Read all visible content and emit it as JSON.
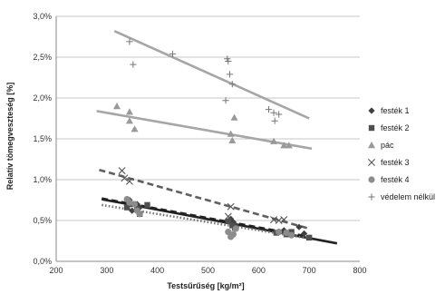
{
  "chart_data": {
    "type": "scatter",
    "title": "",
    "xlabel": "Testsűrűség [kg/m²]",
    "ylabel": "Relatív tömegveszteség [%]",
    "xlim": [
      200,
      800
    ],
    "ylim": [
      0,
      3.0
    ],
    "xticks": [
      200,
      300,
      400,
      500,
      600,
      700,
      800
    ],
    "xtick_labels": [
      "200",
      "300",
      "400",
      "500",
      "600",
      "700",
      "800"
    ],
    "yticks": [
      0,
      0.5,
      1.0,
      1.5,
      2.0,
      2.5,
      3.0
    ],
    "ytick_labels": [
      "0,0%",
      "0,5%",
      "1,0%",
      "1,5%",
      "2,0%",
      "2,5%",
      "3,0%"
    ],
    "grid": "horizontal",
    "legend_position": "right",
    "series": [
      {
        "name": "festék 1",
        "marker": "diamond",
        "color": "#404040",
        "points": [
          [
            340,
            0.68
          ],
          [
            345,
            0.75
          ],
          [
            350,
            0.62
          ],
          [
            360,
            0.7
          ],
          [
            365,
            0.66
          ],
          [
            545,
            0.52
          ],
          [
            550,
            0.48
          ],
          [
            555,
            0.44
          ],
          [
            640,
            0.36
          ],
          [
            650,
            0.38
          ],
          [
            680,
            0.42
          ],
          [
            690,
            0.34
          ]
        ],
        "trend": {
          "x": [
            290,
            700
          ],
          "y": [
            0.77,
            0.3
          ],
          "style": "dash",
          "color": "#222222"
        }
      },
      {
        "name": "festék 2",
        "marker": "square",
        "color": "#505050",
        "points": [
          [
            340,
            0.66
          ],
          [
            350,
            0.7
          ],
          [
            360,
            0.64
          ],
          [
            365,
            0.58
          ],
          [
            380,
            0.69
          ],
          [
            540,
            0.49
          ],
          [
            548,
            0.44
          ],
          [
            553,
            0.41
          ],
          [
            635,
            0.35
          ],
          [
            655,
            0.33
          ],
          [
            665,
            0.36
          ],
          [
            700,
            0.29
          ]
        ],
        "trend": {
          "x": [
            290,
            755
          ],
          "y": [
            0.76,
            0.22
          ],
          "style": "solid",
          "color": "#222222"
        }
      },
      {
        "name": "pác",
        "marker": "triangle",
        "color": "#999999",
        "points": [
          [
            320,
            1.9
          ],
          [
            345,
            1.83
          ],
          [
            345,
            1.72
          ],
          [
            355,
            1.62
          ],
          [
            545,
            1.56
          ],
          [
            548,
            1.48
          ],
          [
            552,
            1.76
          ],
          [
            630,
            1.47
          ],
          [
            650,
            1.42
          ],
          [
            660,
            1.42
          ]
        ],
        "trend": {
          "x": [
            280,
            705
          ],
          "y": [
            1.84,
            1.38
          ],
          "style": "solid",
          "color": "#a6a6a6"
        }
      },
      {
        "name": "festék 3",
        "marker": "x",
        "color": "#555555",
        "points": [
          [
            330,
            1.11
          ],
          [
            335,
            1.02
          ],
          [
            345,
            0.98
          ],
          [
            540,
            0.55
          ],
          [
            545,
            0.67
          ],
          [
            630,
            0.51
          ],
          [
            640,
            0.5
          ],
          [
            650,
            0.51
          ]
        ],
        "trend": {
          "x": [
            285,
            700
          ],
          "y": [
            1.12,
            0.4
          ],
          "style": "dash",
          "color": "#606060"
        }
      },
      {
        "name": "festék 4",
        "marker": "circle",
        "color": "#8c8c8c",
        "points": [
          [
            340,
            0.76
          ],
          [
            345,
            0.72
          ],
          [
            355,
            0.7
          ],
          [
            360,
            0.62
          ],
          [
            365,
            0.58
          ],
          [
            540,
            0.36
          ],
          [
            545,
            0.3
          ],
          [
            550,
            0.33
          ],
          [
            555,
            0.4
          ],
          [
            640,
            0.36
          ],
          [
            655,
            0.35
          ],
          [
            665,
            0.32
          ]
        ],
        "trend": {
          "x": [
            290,
            700
          ],
          "y": [
            0.69,
            0.28
          ],
          "style": "dot",
          "color": "#777777"
        }
      },
      {
        "name": "védelem nélkül",
        "marker": "plus",
        "color": "#777777",
        "points": [
          [
            345,
            2.69
          ],
          [
            352,
            2.41
          ],
          [
            430,
            2.54
          ],
          [
            535,
            1.97
          ],
          [
            538,
            2.48
          ],
          [
            540,
            2.45
          ],
          [
            543,
            2.29
          ],
          [
            548,
            2.17
          ],
          [
            620,
            1.86
          ],
          [
            630,
            1.82
          ],
          [
            632,
            1.72
          ],
          [
            640,
            1.8
          ]
        ],
        "trend": {
          "x": [
            315,
            700
          ],
          "y": [
            2.82,
            1.75
          ],
          "style": "solid",
          "color": "#a6a6a6"
        }
      }
    ]
  }
}
